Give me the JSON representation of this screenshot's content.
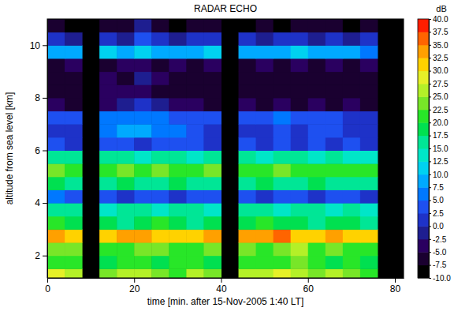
{
  "chart_data": {
    "type": "heatmap",
    "title": "RADAR ECHO",
    "x_label": "time [min. after 15-Nov-2005 1:40 LT]",
    "y_label": "altitude from sea level [km]",
    "xlim": [
      0,
      82
    ],
    "xticks": [
      0,
      20,
      40,
      60,
      80
    ],
    "ylim": [
      1.15,
      11
    ],
    "yticks": [
      2,
      4,
      6,
      8,
      10
    ],
    "x": [
      2,
      6,
      10,
      14,
      18,
      22,
      26,
      30,
      34,
      38,
      42,
      46,
      50,
      54,
      58,
      62,
      66,
      70,
      74,
      78
    ],
    "y": [
      1.25,
      1.75,
      2.25,
      2.75,
      3.25,
      3.75,
      4.25,
      4.75,
      5.25,
      5.75,
      6.25,
      6.75,
      7.25,
      7.75,
      8.25,
      8.75,
      9.25,
      9.75,
      10.25,
      10.75
    ],
    "z": [
      [
        28,
        26,
        null,
        24,
        27,
        25,
        23,
        22,
        26,
        24,
        null,
        25,
        27,
        28,
        26,
        24,
        25,
        23,
        22,
        null
      ],
      [
        22,
        20,
        null,
        19,
        21,
        20,
        18,
        20,
        22,
        19,
        null,
        21,
        20,
        22,
        24,
        21,
        19,
        20,
        18,
        null
      ],
      [
        24,
        23,
        null,
        22,
        20,
        23,
        24,
        21,
        22,
        23,
        null,
        24,
        22,
        23,
        25,
        22,
        23,
        21,
        22,
        null
      ],
      [
        33,
        31,
        null,
        32,
        34,
        33,
        31,
        32,
        30,
        33,
        null,
        34,
        33,
        35,
        32,
        31,
        33,
        32,
        30,
        null
      ],
      [
        20,
        18,
        null,
        19,
        17,
        18,
        20,
        18,
        17,
        19,
        null,
        18,
        20,
        19,
        18,
        17,
        19,
        18,
        17,
        null
      ],
      [
        17,
        15,
        null,
        14,
        16,
        15,
        14,
        16,
        15,
        14,
        null,
        16,
        15,
        14,
        16,
        15,
        14,
        15,
        13,
        null
      ],
      [
        6,
        4,
        null,
        3,
        2,
        4,
        3,
        2,
        3,
        4,
        null,
        3,
        2,
        4,
        3,
        2,
        3,
        4,
        2,
        null
      ],
      [
        18,
        17,
        null,
        16,
        18,
        17,
        16,
        18,
        17,
        16,
        null,
        17,
        18,
        16,
        17,
        18,
        16,
        17,
        16,
        null
      ],
      [
        23,
        22,
        null,
        21,
        23,
        22,
        24,
        22,
        21,
        23,
        null,
        22,
        21,
        23,
        22,
        21,
        22,
        21,
        20,
        null
      ],
      [
        16,
        15,
        null,
        17,
        15,
        14,
        16,
        15,
        14,
        16,
        null,
        15,
        14,
        15,
        16,
        14,
        15,
        14,
        13,
        null
      ],
      [
        3,
        2,
        null,
        4,
        3,
        2,
        3,
        4,
        3,
        2,
        null,
        3,
        2,
        3,
        2,
        3,
        2,
        3,
        2,
        null
      ],
      [
        1,
        0,
        null,
        6,
        8,
        9,
        7,
        5,
        3,
        2,
        null,
        2,
        1,
        3,
        2,
        4,
        3,
        2,
        1,
        null
      ],
      [
        4,
        3,
        null,
        5,
        6,
        7,
        5,
        4,
        3,
        4,
        null,
        3,
        4,
        5,
        3,
        4,
        3,
        2,
        2,
        null
      ],
      [
        -5,
        -6,
        null,
        -3,
        -1,
        0,
        -2,
        -4,
        -5,
        -6,
        null,
        -5,
        -6,
        -5,
        -6,
        -5,
        -6,
        -5,
        -6,
        null
      ],
      [
        -6,
        -7,
        null,
        -4,
        -3,
        -5,
        -6,
        -7,
        -6,
        -7,
        null,
        -6,
        -7,
        -6,
        -7,
        -6,
        -7,
        -6,
        -7,
        null
      ],
      [
        -7,
        -6,
        null,
        -5,
        -6,
        -2,
        -5,
        -6,
        -7,
        -6,
        null,
        -7,
        -6,
        -7,
        -6,
        -7,
        -6,
        -7,
        -6,
        null
      ],
      [
        -6,
        -5,
        null,
        -6,
        -5,
        -3,
        -6,
        -5,
        -6,
        -5,
        null,
        -6,
        -5,
        -6,
        -5,
        -6,
        -5,
        -6,
        -5,
        null
      ],
      [
        9,
        8,
        null,
        10,
        9,
        11,
        9,
        8,
        9,
        10,
        null,
        9,
        8,
        9,
        10,
        8,
        9,
        8,
        7,
        null
      ],
      [
        0,
        -1,
        null,
        1,
        -1,
        3,
        0,
        -1,
        0,
        1,
        null,
        0,
        -1,
        0,
        1,
        -1,
        0,
        -1,
        0,
        null
      ],
      [
        -7,
        -8,
        null,
        -7,
        -6,
        -2,
        -7,
        -8,
        -7,
        -6,
        null,
        -8,
        -7,
        -8,
        -7,
        -6,
        -7,
        -8,
        -7,
        null
      ]
    ],
    "colorbar": {
      "label": "dB",
      "range": [
        -10,
        40
      ],
      "ticks": [
        {
          "value": -10,
          "label": "-10.0"
        },
        {
          "value": -7.5,
          "label": "-7.5"
        },
        {
          "value": -5,
          "label": "-5.0"
        },
        {
          "value": -2.5,
          "label": "-2.5"
        },
        {
          "value": 0,
          "label": "0.0"
        },
        {
          "value": 2.5,
          "label": "2.5"
        },
        {
          "value": 5,
          "label": "5.0"
        },
        {
          "value": 7.5,
          "label": "7.5"
        },
        {
          "value": 10,
          "label": "10.0"
        },
        {
          "value": 12.5,
          "label": "12.5"
        },
        {
          "value": 15,
          "label": "15.0"
        },
        {
          "value": 17.5,
          "label": "17.5"
        },
        {
          "value": 20,
          "label": "20.0"
        },
        {
          "value": 22.5,
          "label": "22.5"
        },
        {
          "value": 25,
          "label": "25.0"
        },
        {
          "value": 27.5,
          "label": "27.5"
        },
        {
          "value": 30,
          "label": "30.0"
        },
        {
          "value": 32.5,
          "label": "32.5"
        },
        {
          "value": 35,
          "label": "35.0"
        },
        {
          "value": 37.5,
          "label": "37.5"
        },
        {
          "value": 40,
          "label": "40.0"
        }
      ]
    }
  }
}
